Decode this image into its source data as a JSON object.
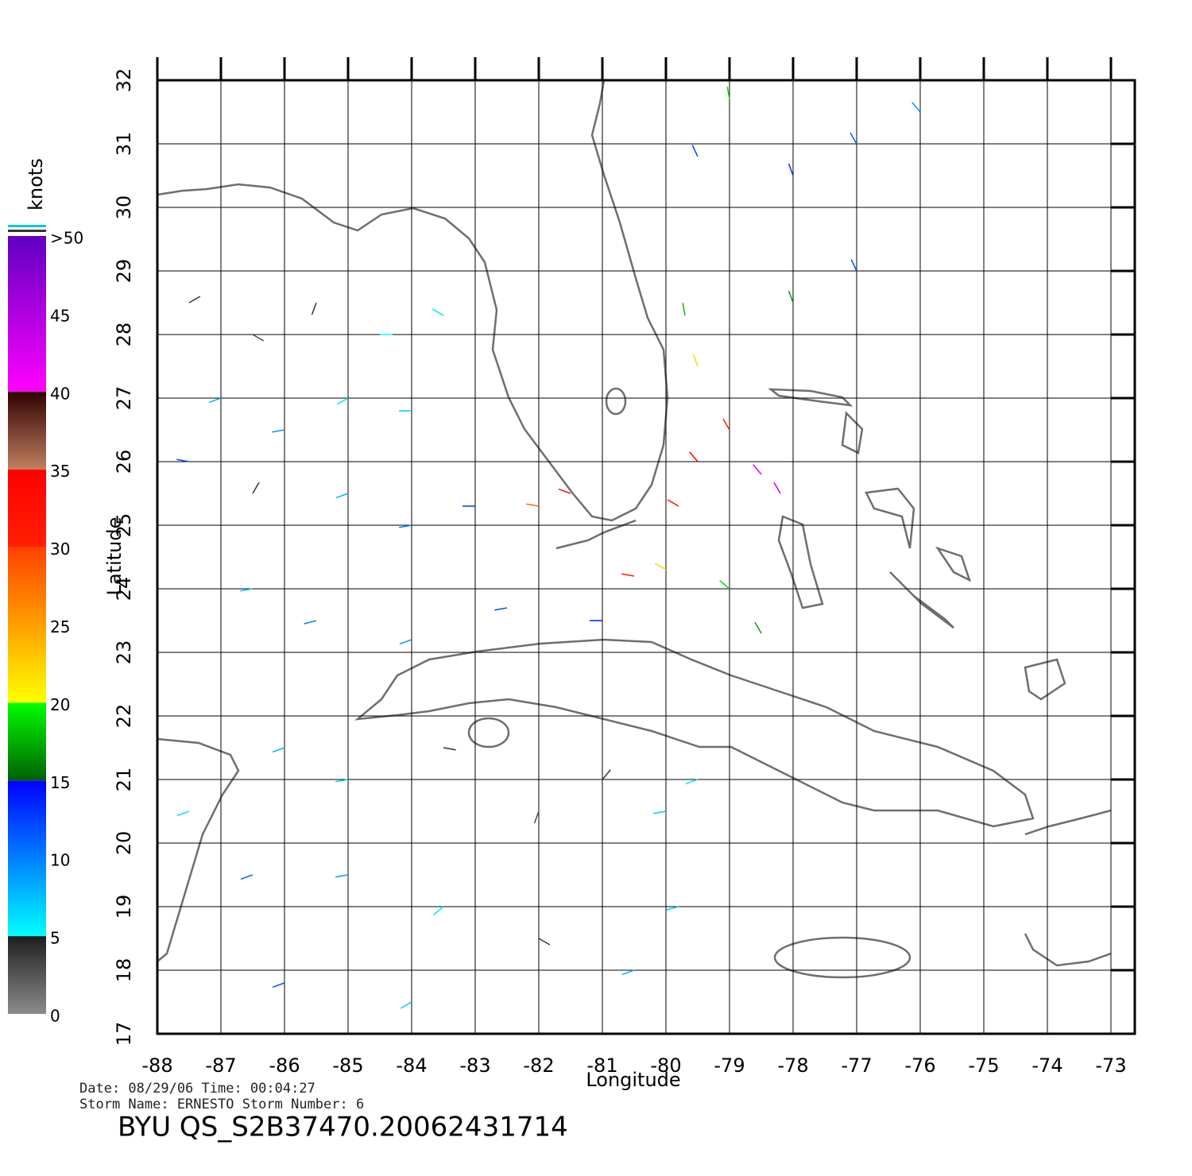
{
  "chart_data": {
    "type": "wind-map",
    "xlabel": "Longitude",
    "ylabel": "Latitude",
    "xlim": [
      -88,
      -73
    ],
    "ylim": [
      17,
      32
    ],
    "xticks": [
      -88,
      -87,
      -86,
      -85,
      -84,
      -83,
      -82,
      -81,
      -80,
      -79,
      -78,
      -77,
      -76,
      -75,
      -74,
      -73
    ],
    "yticks": [
      17,
      18,
      19,
      20,
      21,
      22,
      23,
      24,
      25,
      26,
      27,
      28,
      29,
      30,
      31,
      32
    ],
    "grid": true,
    "colorbar": {
      "title": "knots",
      "lim": [
        0,
        50
      ],
      "ticks": [
        0,
        5,
        10,
        15,
        20,
        25,
        30,
        35,
        40,
        45,
        {
          "value": 50,
          "label": ">50"
        }
      ],
      "stops": [
        {
          "value": 0,
          "color": "#8c8c8c"
        },
        {
          "value": 5,
          "color": "#1e1e1e"
        },
        {
          "value": 5,
          "color": "#00ffff"
        },
        {
          "value": 15,
          "color": "#0000ff"
        },
        {
          "value": 15,
          "color": "#006000"
        },
        {
          "value": 20,
          "color": "#00ff00"
        },
        {
          "value": 20,
          "color": "#ffff00"
        },
        {
          "value": 30,
          "color": "#ff4000"
        },
        {
          "value": 30,
          "color": "#ff2000"
        },
        {
          "value": 35,
          "color": "#ff0000"
        },
        {
          "value": 35,
          "color": "#c08060"
        },
        {
          "value": 40,
          "color": "#300000"
        },
        {
          "value": 40,
          "color": "#ff00ff"
        },
        {
          "value": 50,
          "color": "#6000c0"
        }
      ]
    },
    "vectors": {
      "lon": [
        -87.5,
        -86.5,
        -85.5,
        -84.5,
        -83.5,
        -87,
        -86,
        -85,
        -84,
        -87.5,
        -86.5,
        -85,
        -84,
        -83,
        -82,
        -81.5,
        -80.5,
        -79.8,
        -79.5,
        -79,
        -78.5,
        -78.2,
        -79.5,
        -79.7,
        -78,
        -77,
        -78,
        -79.5,
        -77,
        -76,
        -79,
        -80,
        -79,
        -78.5,
        -86.5,
        -85.5,
        -84,
        -82.5,
        -81,
        -86,
        -85,
        -83.5,
        -82,
        -81,
        -80,
        -79.5,
        -86.5,
        -85,
        -83.5,
        -82,
        -80.5,
        -79.8,
        -86,
        -84,
        -87.5
      ],
      "lat": [
        28.5,
        28,
        28.5,
        28,
        28.3,
        27,
        26.5,
        27,
        26.8,
        26,
        25.5,
        25.5,
        25,
        25.3,
        25.3,
        25.5,
        24.2,
        25.3,
        26,
        26.5,
        25.8,
        25.5,
        27.5,
        28.3,
        28.5,
        29,
        30.5,
        30.8,
        31,
        31.5,
        31.7,
        24.3,
        24,
        23.3,
        24,
        23.5,
        23.2,
        23.7,
        23.5,
        21.5,
        21,
        21.5,
        20.5,
        21,
        20.5,
        21,
        19.5,
        19.5,
        19,
        18.5,
        18,
        19,
        17.8,
        17.5,
        20.5
      ],
      "speed": [
        4,
        3,
        4,
        5,
        6,
        8,
        9,
        6,
        7,
        12,
        4,
        8,
        10,
        13,
        28,
        32,
        31,
        33,
        34,
        30,
        42,
        44,
        22,
        18,
        17,
        12,
        13,
        12,
        11,
        9,
        19,
        22,
        19,
        17,
        7,
        10,
        9,
        12,
        14,
        8,
        7,
        4,
        3,
        4,
        7,
        6,
        11,
        9,
        6,
        4,
        8,
        7,
        12,
        7,
        6
      ],
      "direction": [
        60,
        120,
        200,
        90,
        300,
        250,
        260,
        240,
        270,
        280,
        30,
        250,
        260,
        270,
        280,
        290,
        280,
        300,
        320,
        330,
        320,
        330,
        340,
        350,
        340,
        335,
        340,
        335,
        330,
        320,
        350,
        300,
        310,
        330,
        260,
        255,
        250,
        260,
        270,
        250,
        260,
        100,
        200,
        40,
        260,
        250,
        250,
        260,
        230,
        120,
        250,
        255,
        250,
        240,
        250
      ]
    },
    "footer": {
      "line1": "Date:  08/29/06   Time:  00:04:27",
      "line2": "Storm  Name:  ERNESTO   Storm  Number:  6",
      "id": "BYU  QS_S2B37470.20062431714"
    }
  }
}
